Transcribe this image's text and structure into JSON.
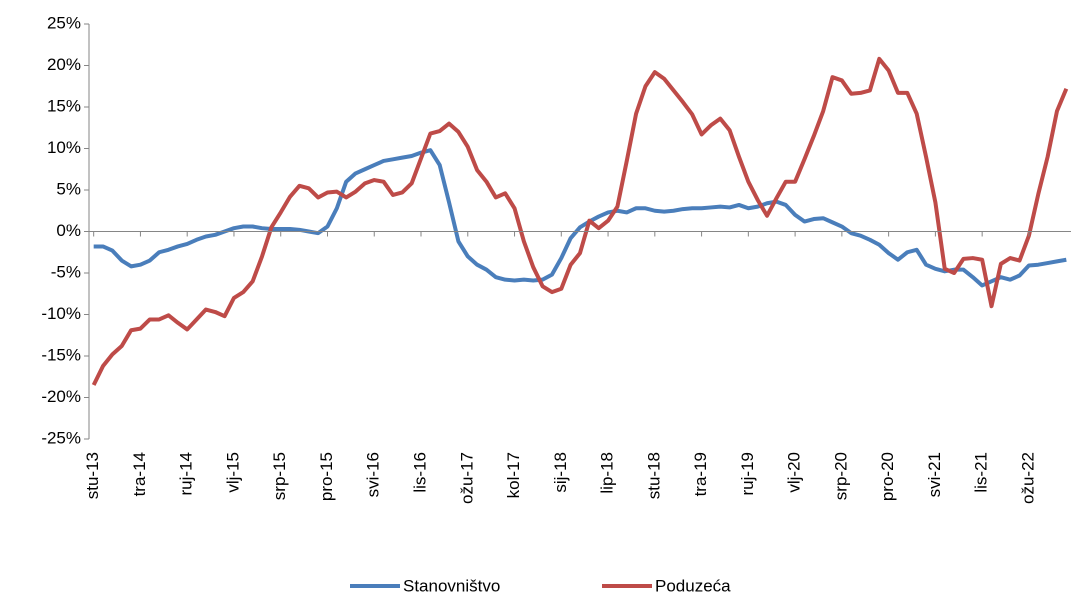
{
  "chart_data": {
    "type": "line",
    "categories": [
      "stu-13",
      null,
      null,
      null,
      null,
      "tra-14",
      null,
      null,
      null,
      null,
      "ruj-14",
      null,
      null,
      null,
      null,
      "vlj-15",
      null,
      null,
      null,
      null,
      "srp-15",
      null,
      null,
      null,
      null,
      "pro-15",
      null,
      null,
      null,
      null,
      "svi-16",
      null,
      null,
      null,
      null,
      "lis-16",
      null,
      null,
      null,
      null,
      "ožu-17",
      null,
      null,
      null,
      null,
      "kol-17",
      null,
      null,
      null,
      null,
      "sij-18",
      null,
      null,
      null,
      null,
      "lip-18",
      null,
      null,
      null,
      null,
      "stu-18",
      null,
      null,
      null,
      null,
      "tra-19",
      null,
      null,
      null,
      null,
      "ruj-19",
      null,
      null,
      null,
      null,
      "vlj-20",
      null,
      null,
      null,
      null,
      "srp-20",
      null,
      null,
      null,
      null,
      "pro-20",
      null,
      null,
      null,
      null,
      "svi-21",
      null,
      null,
      null,
      null,
      "lis-21",
      null,
      null,
      null,
      null,
      "ožu-22",
      null,
      null,
      null,
      null
    ],
    "series": [
      {
        "name": "Stanovništvo",
        "color": "#4a7ebb",
        "values": [
          -1.8,
          -1.8,
          -2.3,
          -3.5,
          -4.2,
          -4.0,
          -3.5,
          -2.5,
          -2.2,
          -1.8,
          -1.5,
          -1.0,
          -0.6,
          -0.4,
          0.0,
          0.4,
          0.6,
          0.6,
          0.4,
          0.3,
          0.3,
          0.3,
          0.2,
          0.0,
          -0.2,
          0.6,
          2.8,
          6.0,
          7.0,
          7.5,
          8.0,
          8.5,
          8.7,
          8.9,
          9.1,
          9.5,
          9.8,
          8.0,
          3.5,
          -1.2,
          -3.0,
          -4.0,
          -4.6,
          -5.5,
          -5.8,
          -5.9,
          -5.8,
          -5.9,
          -5.8,
          -5.2,
          -3.2,
          -0.8,
          0.5,
          1.2,
          1.8,
          2.3,
          2.5,
          2.3,
          2.8,
          2.8,
          2.5,
          2.4,
          2.5,
          2.7,
          2.8,
          2.8,
          2.9,
          3.0,
          2.9,
          3.2,
          2.8,
          3.0,
          3.4,
          3.6,
          3.2,
          2.0,
          1.2,
          1.5,
          1.6,
          1.1,
          0.6,
          -0.2,
          -0.5,
          -1.0,
          -1.6,
          -2.6,
          -3.4,
          -2.5,
          -2.2,
          -4.0,
          -4.5,
          -4.8,
          -4.6,
          -4.6,
          -5.5,
          -6.5,
          -6.0,
          -5.5,
          -5.8,
          -5.3,
          -4.1,
          -4.0,
          -3.8,
          -3.6,
          -3.4
        ]
      },
      {
        "name": "Poduzeća",
        "color": "#be4b48",
        "values": [
          -18.5,
          -16.2,
          -14.8,
          -13.8,
          -11.9,
          -11.7,
          -10.6,
          -10.6,
          -10.1,
          -11.0,
          -11.8,
          -10.6,
          -9.4,
          -9.7,
          -10.2,
          -8.0,
          -7.3,
          -6.0,
          -3.0,
          0.5,
          2.3,
          4.2,
          5.5,
          5.2,
          4.1,
          4.7,
          4.8,
          4.1,
          4.8,
          5.8,
          6.2,
          6.0,
          4.4,
          4.7,
          5.8,
          8.8,
          11.8,
          12.1,
          13.0,
          12.0,
          10.2,
          7.4,
          6.0,
          4.1,
          4.6,
          2.8,
          -1.2,
          -4.3,
          -6.6,
          -7.3,
          -6.9,
          -4.0,
          -2.6,
          1.3,
          0.4,
          1.3,
          3.0,
          8.5,
          14.2,
          17.5,
          19.2,
          18.4,
          17.0,
          15.6,
          14.1,
          11.7,
          12.8,
          13.6,
          12.2,
          9.0,
          6.0,
          3.8,
          1.9,
          4.0,
          6.0,
          6.0,
          8.7,
          11.5,
          14.5,
          18.6,
          18.2,
          16.6,
          16.7,
          17.0,
          20.8,
          19.4,
          16.7,
          16.7,
          14.2,
          9.0,
          3.5,
          -4.5,
          -5.0,
          -3.3,
          -3.2,
          -3.4,
          -9.0,
          -3.9,
          -3.2,
          -3.5,
          -0.5,
          4.5,
          9.0,
          14.5,
          17.2
        ]
      }
    ],
    "ylim": [
      -25,
      25
    ],
    "yticks": [
      {
        "value": -25,
        "label": "-25%"
      },
      {
        "value": -20,
        "label": "-20%"
      },
      {
        "value": -15,
        "label": "-15%"
      },
      {
        "value": -10,
        "label": "-10%"
      },
      {
        "value": -5,
        "label": "-5%"
      },
      {
        "value": 0,
        "label": "0%"
      },
      {
        "value": 5,
        "label": "5%"
      },
      {
        "value": 10,
        "label": "10%"
      },
      {
        "value": 15,
        "label": "15%"
      },
      {
        "value": 20,
        "label": "20%"
      },
      {
        "value": 25,
        "label": "25%"
      }
    ]
  }
}
